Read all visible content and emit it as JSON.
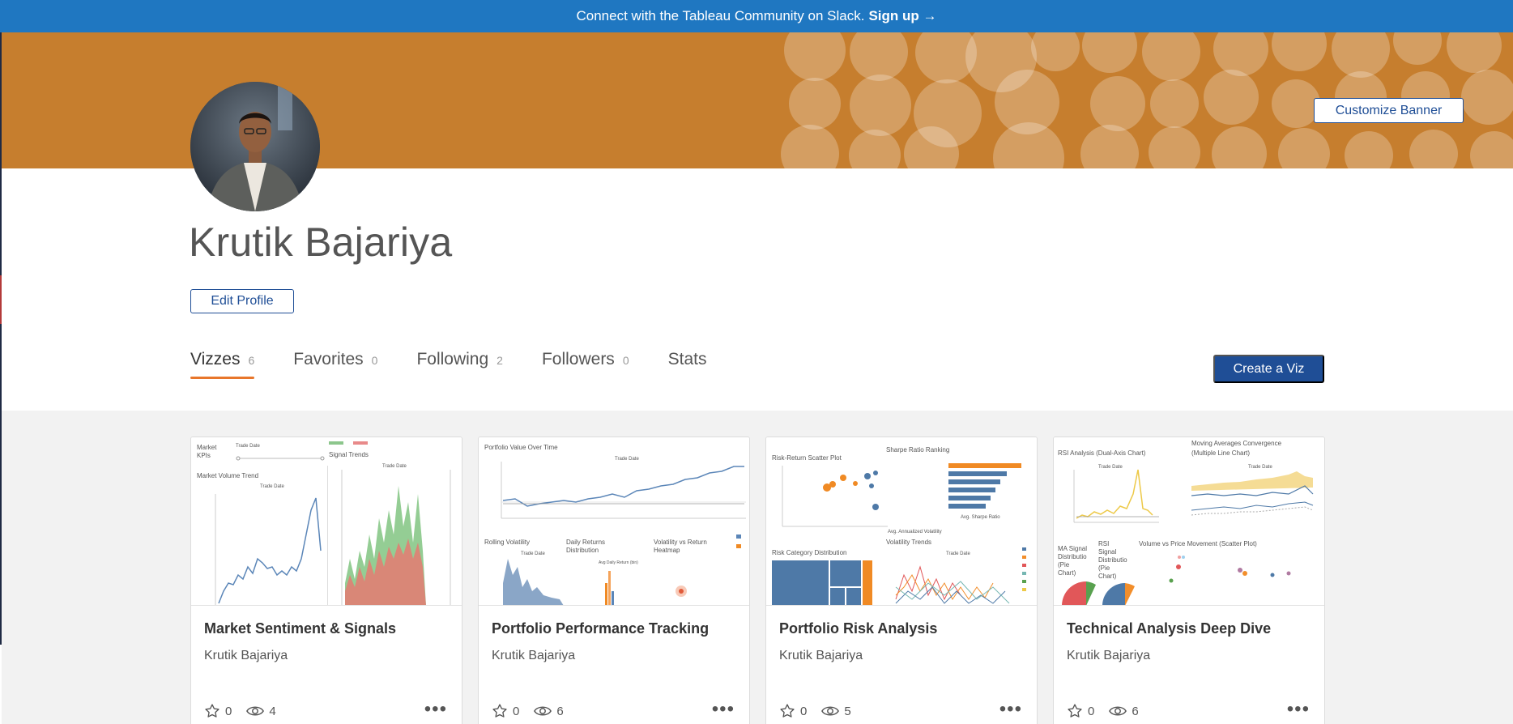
{
  "slack_banner": {
    "text": "Connect with the Tableau Community on Slack.",
    "link": "Sign up →"
  },
  "banner": {
    "color": "#c67e2e",
    "customize_label": "Customize Banner"
  },
  "profile": {
    "name": "Krutik Bajariya",
    "edit_label": "Edit Profile"
  },
  "tabs": [
    {
      "label": "Vizzes",
      "count": "6"
    },
    {
      "label": "Favorites",
      "count": "0"
    },
    {
      "label": "Following",
      "count": "2"
    },
    {
      "label": "Followers",
      "count": "0"
    },
    {
      "label": "Stats",
      "count": ""
    }
  ],
  "create_label": "Create a Viz",
  "accent_colors": {
    "primary_blue": "#1f4e96",
    "slack_blue": "#1f77c1",
    "tab_underline": "#e8762b"
  },
  "cards": [
    {
      "title": "Market Sentiment & Signals",
      "author": "Krutik Bajariya",
      "favorites": "0",
      "views": "4",
      "thumb": {
        "labels": [
          "Market",
          "KPIs",
          "Trade Date",
          "Signal Trends",
          "Market Volume Trend",
          "Trade Date",
          "Trade Date"
        ]
      }
    },
    {
      "title": "Portfolio Performance Tracking",
      "author": "Krutik Bajariya",
      "favorites": "0",
      "views": "6",
      "thumb": {
        "labels": [
          "Portfolio Value Over Time",
          "Trade Date",
          "Rolling Volatility",
          "Trade Date",
          "Daily Returns",
          "Distribution",
          "Volatility vs Return",
          "Heatmap",
          "Avg Daily Return (bin)"
        ]
      }
    },
    {
      "title": "Portfolio Risk Analysis",
      "author": "Krutik Bajariya",
      "favorites": "0",
      "views": "5",
      "thumb": {
        "labels": [
          "Risk-Return Scatter Plot",
          "Sharpe Ratio Ranking",
          "Risk Category Distribution",
          "Volatility Trends",
          "Trade Date",
          "Avg. Sharpe Ratio",
          "Avg. Annualized Volatility"
        ]
      }
    },
    {
      "title": "Technical Analysis Deep Dive",
      "author": "Krutik Bajariya",
      "favorites": "0",
      "views": "6",
      "thumb": {
        "labels": [
          "RSI Analysis (Dual-Axis Chart)",
          "Moving Averages Convergence",
          "(Multiple Line Chart)",
          "Trade Date",
          "Trade Date",
          "MA Signal",
          "Distributio",
          "(Pie",
          "Chart)",
          "RSI",
          "Signal",
          "Distributio",
          "(Pie",
          "Chart)",
          "Volume vs Price Movement (Scatter Plot)"
        ]
      }
    }
  ]
}
